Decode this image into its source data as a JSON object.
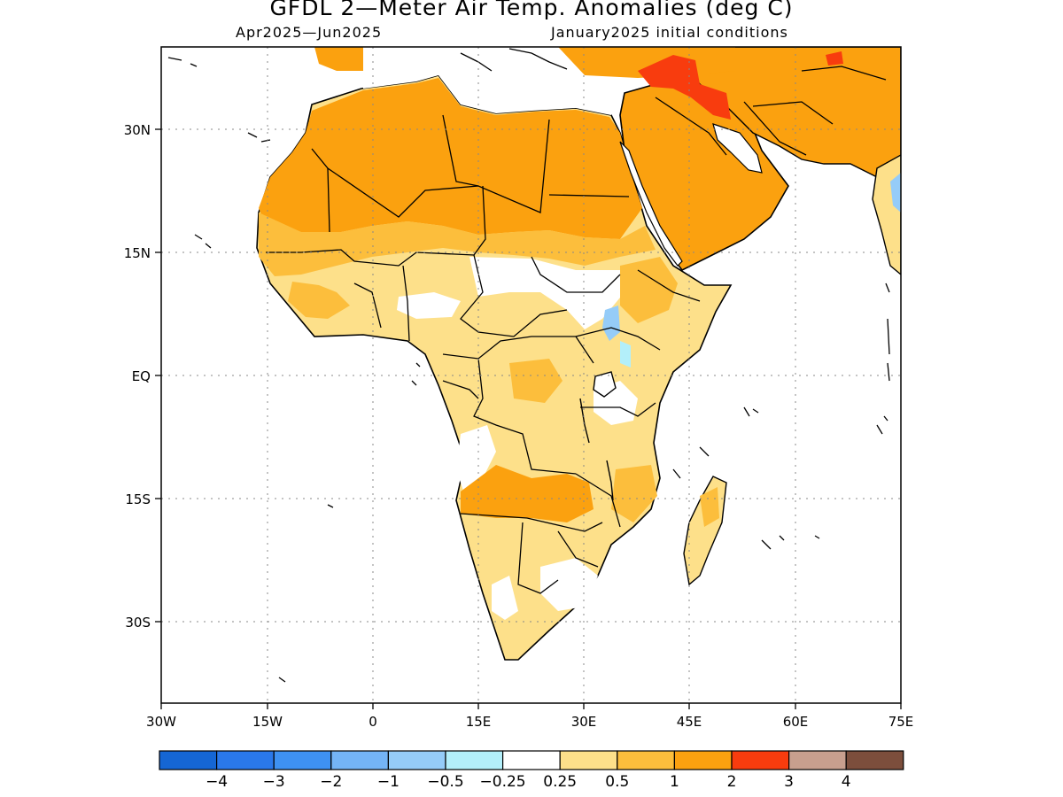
{
  "title": "GFDL 2—Meter Air Temp. Anomalies (deg C)",
  "subtitle_left": "Apr2025—Jun2025",
  "subtitle_right": "January2025 initial conditions",
  "lon_labels": [
    "30W",
    "15W",
    "0",
    "15E",
    "30E",
    "45E",
    "60E",
    "75E"
  ],
  "lat_labels": [
    "30N",
    "15N",
    "EQ",
    "15S",
    "30S"
  ],
  "colorbar": {
    "colors": [
      "#1566d4",
      "#2a78ea",
      "#3e91f2",
      "#74b4f6",
      "#95ccf8",
      "#b3effa",
      "#ffffff",
      "#fde08a",
      "#fcbe3c",
      "#fba10f",
      "#f83c0e",
      "#c89f8e",
      "#7c4e3c"
    ],
    "labels": [
      "−4",
      "−3",
      "−2",
      "−1",
      "−0.5",
      "−0.25",
      "0.25",
      "0.5",
      "1",
      "2",
      "3",
      "4"
    ]
  }
}
